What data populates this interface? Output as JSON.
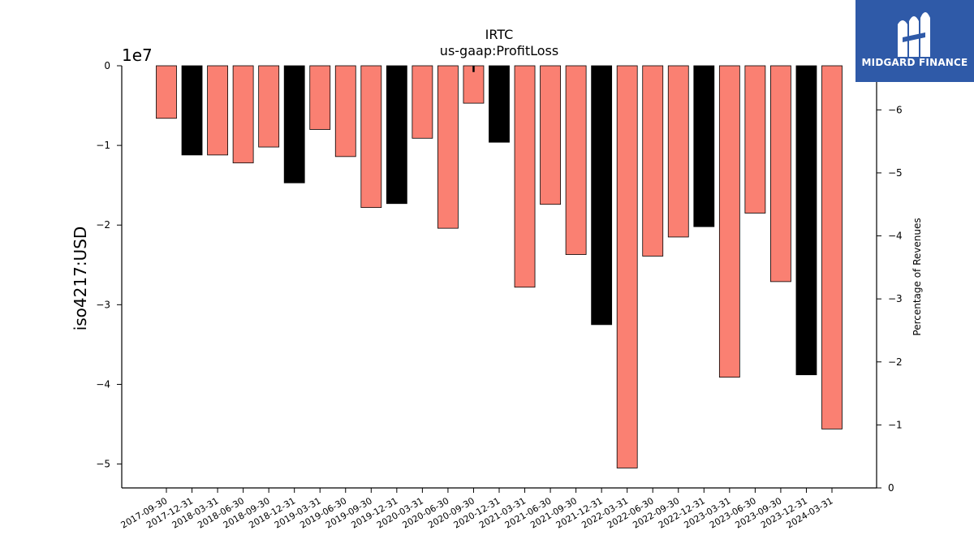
{
  "logo": {
    "text": "MIDGARD FINANCE",
    "color": "#2f5aa8"
  },
  "chart_data": {
    "type": "bar",
    "title": "IRTC",
    "subtitle": "us-gaap:ProfitLoss",
    "ylabel": "iso4217:USD",
    "y2label": "Percentage of Revenues",
    "y_offset_label": "1e7",
    "ylim": [
      -53000000,
      0
    ],
    "yticks": [
      0,
      -10000000,
      -20000000,
      -30000000,
      -40000000,
      -50000000
    ],
    "ytick_labels": [
      "0",
      "−1",
      "−2",
      "−3",
      "−4",
      "−5"
    ],
    "y2lim": [
      0,
      -6.7
    ],
    "y2ticks": [
      0,
      -1,
      -2,
      -3,
      -4,
      -5,
      -6
    ],
    "y2tick_labels": [
      "0",
      "−1",
      "−2",
      "−3",
      "−4",
      "−5",
      "−6"
    ],
    "colors": {
      "quarter": "#fa8072",
      "year_end": "#000000"
    },
    "categories": [
      "2017-09-30",
      "2017-12-31",
      "2018-03-31",
      "2018-06-30",
      "2018-09-30",
      "2018-12-31",
      "2019-03-31",
      "2019-06-30",
      "2019-09-30",
      "2019-12-31",
      "2020-03-31",
      "2020-06-30",
      "2020-09-30",
      "2020-12-31",
      "2021-03-31",
      "2021-06-30",
      "2021-09-30",
      "2021-12-31",
      "2022-03-31",
      "2022-06-30",
      "2022-09-30",
      "2022-12-31",
      "2023-03-31",
      "2023-06-30",
      "2023-09-30",
      "2023-12-31",
      "2024-03-31"
    ],
    "values": [
      -6600000,
      -11200000,
      -11200000,
      -12200000,
      -10200000,
      -14700000,
      -8000000,
      -11400000,
      -17800000,
      -17300000,
      -9100000,
      -20400000,
      -4700000,
      -9600000,
      -27800000,
      -17400000,
      -23700000,
      -32500000,
      -50500000,
      -23900000,
      -21500000,
      -20200000,
      -39100000,
      -18500000,
      -27100000,
      -38800000,
      -45600000
    ],
    "year_end": [
      false,
      true,
      false,
      false,
      false,
      true,
      false,
      false,
      false,
      true,
      false,
      false,
      false,
      true,
      false,
      false,
      false,
      true,
      false,
      false,
      false,
      true,
      false,
      false,
      false,
      true,
      false
    ],
    "pct_marker": {
      "category": "2020-09-30",
      "value": -6.6
    },
    "legend": "none",
    "grid": false
  }
}
